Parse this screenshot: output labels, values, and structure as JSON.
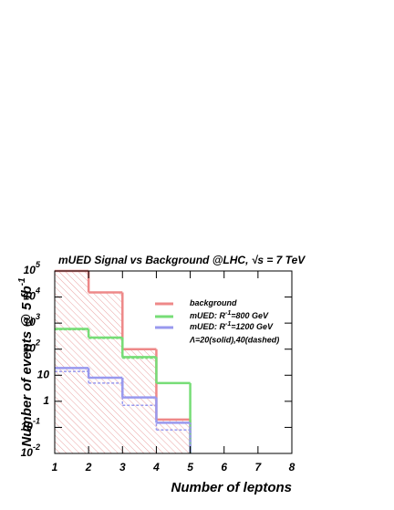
{
  "chart_data": {
    "type": "histogram",
    "title": "mUED Signal vs Background  @LHC, √s = 7 TeV",
    "x_label": "Number of leptons",
    "y_label": "Number of events @ 5 fb",
    "y_label_sup": "-1",
    "bins": [
      1,
      2,
      3,
      4,
      5
    ],
    "series": [
      {
        "name": "background",
        "color": "#ee8888",
        "style": "solid",
        "hatch": true,
        "values": [
          100000,
          15000,
          100,
          0.2
        ]
      },
      {
        "name": "mUED: R",
        "name_sup": "-1",
        "name_suffix": "=800 GeV",
        "color": "#77dd77",
        "style": "solid",
        "values": [
          600,
          280,
          50,
          5
        ]
      },
      {
        "name": "mUED: R",
        "name_sup": "-1",
        "name_suffix": "=1200 GeV",
        "color": "#9999ee",
        "style": "solid",
        "values": [
          19,
          8,
          1.4,
          0.15
        ]
      },
      {
        "color": "#77dd77",
        "style": "dashed",
        "values": [
          560,
          260,
          45,
          5
        ]
      },
      {
        "color": "#9999ee",
        "style": "dashed",
        "values": [
          14,
          5,
          0.7,
          0.08
        ]
      }
    ],
    "legend_note": "Λ=20(solid),40(dashed)",
    "log_y": true,
    "xlim": [
      1,
      8
    ],
    "xticks": [
      1,
      2,
      3,
      4,
      5,
      6,
      7,
      8
    ],
    "ylim": [
      0.01,
      100000
    ],
    "yticks": [
      {
        "value": 0.01,
        "label": "10",
        "sup": "-2"
      },
      {
        "value": 0.1,
        "label": "10",
        "sup": "-1"
      },
      1,
      10,
      {
        "value": 100,
        "label": "10",
        "sup": "2"
      },
      {
        "value": 1000,
        "label": "10",
        "sup": "3"
      },
      {
        "value": 10000,
        "label": "10",
        "sup": "4"
      },
      {
        "value": 100000,
        "label": "10",
        "sup": "5"
      }
    ]
  }
}
